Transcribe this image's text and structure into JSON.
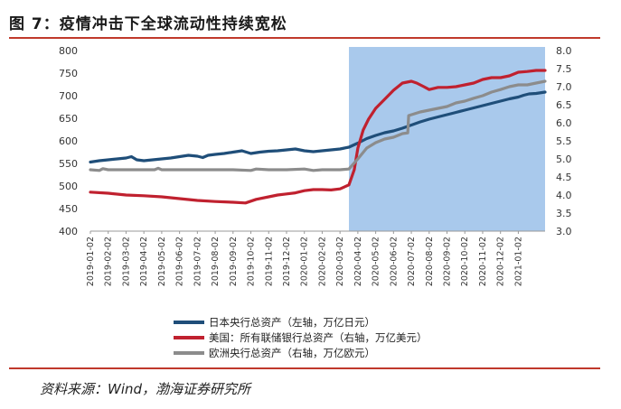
{
  "title": "图 7：疫情冲击下全球流动性持续宽松",
  "source": "资料来源：Wind，渤海证券研究所",
  "chart_data": {
    "type": "line",
    "x_tick_labels": [
      "2019-01-02",
      "2019-02-02",
      "2019-03-02",
      "2019-04-02",
      "2019-05-02",
      "2019-06-02",
      "2019-07-02",
      "2019-08-02",
      "2019-09-02",
      "2019-10-02",
      "2019-11-02",
      "2019-12-02",
      "2020-01-02",
      "2020-02-02",
      "2020-03-02",
      "2020-04-02",
      "2020-05-02",
      "2020-06-02",
      "2020-07-02",
      "2020-08-02",
      "2020-09-02",
      "2020-10-02",
      "2020-11-02",
      "2020-12-02",
      "2021-01-02"
    ],
    "x_range_months": [
      0,
      25.5
    ],
    "left_axis": {
      "min": 400,
      "max": 800,
      "step": 50,
      "ticks": [
        "400",
        "450",
        "500",
        "550",
        "600",
        "650",
        "700",
        "750",
        "800"
      ]
    },
    "right_axis": {
      "min": 3.0,
      "max": 8.0,
      "step": 0.5,
      "ticks": [
        "3.0",
        "3.5",
        "4.0",
        "4.5",
        "5.0",
        "5.5",
        "6.0",
        "6.5",
        "7.0",
        "7.5",
        "8.0"
      ]
    },
    "shaded_region": {
      "start_month": 14.5,
      "end_month": 25.5,
      "color": "#a9c9ec"
    },
    "series": [
      {
        "name": "日本央行总资产（左轴，万亿日元）",
        "axis": "left",
        "color": "#1f4e79",
        "points": [
          [
            0.0,
            553
          ],
          [
            0.5,
            556
          ],
          [
            1.0,
            558
          ],
          [
            1.5,
            560
          ],
          [
            2.0,
            562
          ],
          [
            2.3,
            565
          ],
          [
            2.6,
            558
          ],
          [
            3.0,
            556
          ],
          [
            3.5,
            558
          ],
          [
            4.0,
            560
          ],
          [
            4.5,
            562
          ],
          [
            5.0,
            565
          ],
          [
            5.5,
            568
          ],
          [
            6.0,
            566
          ],
          [
            6.3,
            563
          ],
          [
            6.6,
            568
          ],
          [
            7.0,
            570
          ],
          [
            7.5,
            572
          ],
          [
            8.0,
            575
          ],
          [
            8.5,
            578
          ],
          [
            9.0,
            572
          ],
          [
            9.5,
            575
          ],
          [
            10.0,
            577
          ],
          [
            10.5,
            578
          ],
          [
            11.0,
            580
          ],
          [
            11.5,
            582
          ],
          [
            12.0,
            578
          ],
          [
            12.5,
            576
          ],
          [
            13.0,
            578
          ],
          [
            13.5,
            580
          ],
          [
            14.0,
            582
          ],
          [
            14.5,
            586
          ],
          [
            15.0,
            595
          ],
          [
            15.5,
            605
          ],
          [
            16.0,
            612
          ],
          [
            16.5,
            618
          ],
          [
            17.0,
            622
          ],
          [
            17.5,
            628
          ],
          [
            18.0,
            635
          ],
          [
            18.5,
            642
          ],
          [
            19.0,
            648
          ],
          [
            19.5,
            653
          ],
          [
            20.0,
            658
          ],
          [
            20.5,
            663
          ],
          [
            21.0,
            668
          ],
          [
            21.5,
            673
          ],
          [
            22.0,
            678
          ],
          [
            22.5,
            683
          ],
          [
            23.0,
            688
          ],
          [
            23.5,
            693
          ],
          [
            24.0,
            697
          ],
          [
            24.3,
            701
          ],
          [
            24.6,
            704
          ],
          [
            25.0,
            705
          ],
          [
            25.5,
            708
          ]
        ]
      },
      {
        "name": "美国：所有联储银行总资产（右轴，万亿美元）",
        "axis": "right",
        "color": "#c0212f",
        "points": [
          [
            0.0,
            4.08
          ],
          [
            1.0,
            4.05
          ],
          [
            2.0,
            4.0
          ],
          [
            3.0,
            3.98
          ],
          [
            4.0,
            3.95
          ],
          [
            5.0,
            3.9
          ],
          [
            6.0,
            3.85
          ],
          [
            7.0,
            3.82
          ],
          [
            8.0,
            3.8
          ],
          [
            8.7,
            3.78
          ],
          [
            9.3,
            3.88
          ],
          [
            10.0,
            3.95
          ],
          [
            10.5,
            4.0
          ],
          [
            11.0,
            4.03
          ],
          [
            11.5,
            4.06
          ],
          [
            12.0,
            4.12
          ],
          [
            12.5,
            4.15
          ],
          [
            13.0,
            4.15
          ],
          [
            13.5,
            4.14
          ],
          [
            14.0,
            4.17
          ],
          [
            14.5,
            4.28
          ],
          [
            14.8,
            4.7
          ],
          [
            15.0,
            5.3
          ],
          [
            15.3,
            5.8
          ],
          [
            15.6,
            6.1
          ],
          [
            16.0,
            6.4
          ],
          [
            16.5,
            6.65
          ],
          [
            17.0,
            6.9
          ],
          [
            17.5,
            7.1
          ],
          [
            18.0,
            7.15
          ],
          [
            18.3,
            7.1
          ],
          [
            18.7,
            7.0
          ],
          [
            19.0,
            6.92
          ],
          [
            19.5,
            6.98
          ],
          [
            20.0,
            6.98
          ],
          [
            20.5,
            7.0
          ],
          [
            21.0,
            7.05
          ],
          [
            21.5,
            7.1
          ],
          [
            22.0,
            7.2
          ],
          [
            22.5,
            7.25
          ],
          [
            23.0,
            7.25
          ],
          [
            23.5,
            7.3
          ],
          [
            24.0,
            7.4
          ],
          [
            24.5,
            7.42
          ],
          [
            25.0,
            7.45
          ],
          [
            25.5,
            7.45
          ]
        ]
      },
      {
        "name": "欧洲央行总资产（右轴，万亿欧元）",
        "axis": "right",
        "color": "#8c8c8c",
        "points": [
          [
            0.0,
            4.7
          ],
          [
            0.5,
            4.68
          ],
          [
            0.7,
            4.73
          ],
          [
            1.0,
            4.7
          ],
          [
            2.0,
            4.7
          ],
          [
            3.0,
            4.7
          ],
          [
            3.6,
            4.7
          ],
          [
            3.8,
            4.74
          ],
          [
            4.0,
            4.7
          ],
          [
            5.0,
            4.7
          ],
          [
            6.0,
            4.7
          ],
          [
            7.0,
            4.7
          ],
          [
            8.0,
            4.7
          ],
          [
            9.0,
            4.68
          ],
          [
            9.3,
            4.72
          ],
          [
            10.0,
            4.7
          ],
          [
            11.0,
            4.7
          ],
          [
            12.0,
            4.72
          ],
          [
            12.5,
            4.68
          ],
          [
            13.0,
            4.7
          ],
          [
            14.0,
            4.7
          ],
          [
            14.5,
            4.72
          ],
          [
            15.0,
            5.0
          ],
          [
            15.5,
            5.3
          ],
          [
            16.0,
            5.45
          ],
          [
            16.5,
            5.55
          ],
          [
            17.0,
            5.6
          ],
          [
            17.5,
            5.7
          ],
          [
            17.8,
            5.72
          ],
          [
            17.85,
            6.2
          ],
          [
            18.5,
            6.3
          ],
          [
            19.0,
            6.35
          ],
          [
            19.5,
            6.4
          ],
          [
            20.0,
            6.45
          ],
          [
            20.5,
            6.55
          ],
          [
            21.0,
            6.6
          ],
          [
            21.5,
            6.68
          ],
          [
            22.0,
            6.75
          ],
          [
            22.5,
            6.85
          ],
          [
            23.0,
            6.92
          ],
          [
            23.5,
            7.0
          ],
          [
            24.0,
            7.05
          ],
          [
            24.5,
            7.05
          ],
          [
            25.0,
            7.1
          ],
          [
            25.5,
            7.15
          ]
        ]
      }
    ]
  }
}
